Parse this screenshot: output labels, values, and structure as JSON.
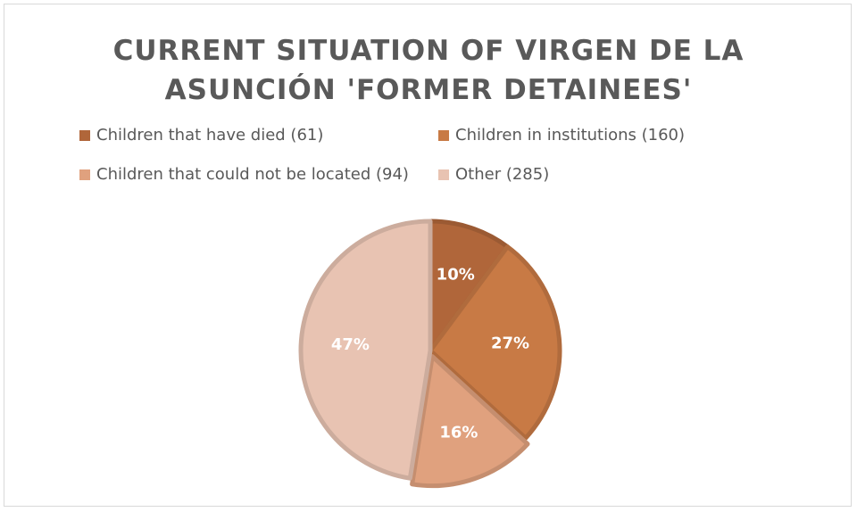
{
  "chart_data": {
    "type": "pie",
    "title": "CURRENT SITUATION OF VIRGEN DE LA ASUNCIÓN 'FORMER DETAINEES'",
    "title_lines": [
      "CURRENT SITUATION OF VIRGEN DE LA",
      "ASUNCIÓN 'FORMER DETAINEES'"
    ],
    "legend_position": "top",
    "slices": [
      {
        "label": "Children that have died (61)",
        "value": 61,
        "percent_label": "10%",
        "color": "#b0663a"
      },
      {
        "label": "Children in institutions (160)",
        "value": 160,
        "percent_label": "27%",
        "color": "#c87a45"
      },
      {
        "label": "Children that could not be located (94)",
        "value": 94,
        "percent_label": "16%",
        "color": "#e0a17e"
      },
      {
        "label": "Other (285)",
        "value": 285,
        "percent_label": "47%",
        "color": "#e8c3b2"
      }
    ]
  }
}
